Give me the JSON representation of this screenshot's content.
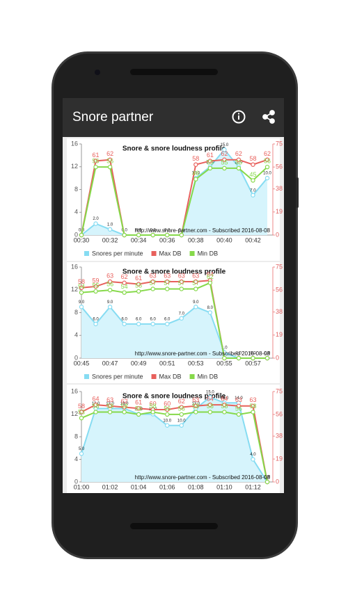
{
  "app_bar": {
    "title": "Snore partner"
  },
  "chart_data": [
    {
      "type": "line",
      "title": "Snore & snore loudness profile",
      "footer": "http://www.snore-partner.com - Subscribed 2016-08-08",
      "categories": [
        "00:30",
        null,
        "00:32",
        null,
        "00:34",
        null,
        "00:36",
        null,
        "00:38",
        null,
        "00:40",
        null,
        "00:42",
        null
      ],
      "ylim": [
        0,
        16
      ],
      "yticks": [
        0,
        4,
        8,
        12,
        16
      ],
      "y2lim": [
        0,
        75
      ],
      "y2ticks": [
        0,
        19,
        38,
        56,
        75
      ],
      "legend": "bottom",
      "series": [
        {
          "name": "Snores per minute",
          "color": "#86dcf2",
          "area": true,
          "values": [
            0,
            2,
            1,
            0,
            0,
            0,
            0,
            0,
            10,
            12,
            15,
            12,
            7,
            10
          ],
          "value_labels": [
            "0.0",
            "2.0",
            "1.0",
            "0.0",
            "0.0",
            "0.0",
            "0.0",
            "0.0",
            "10.0",
            "12.0",
            "15.0",
            "12.0",
            "7.0",
            "10.0"
          ]
        },
        {
          "name": "Max DB",
          "color": "#e8605c",
          "axis": "y2",
          "values": [
            0,
            61,
            62,
            0,
            0,
            0,
            0,
            0,
            58,
            61,
            62,
            62,
            58,
            62
          ]
        },
        {
          "name": "Min DB",
          "color": "#86d94a",
          "axis": "y2",
          "values": [
            0,
            56,
            56,
            0,
            0,
            0,
            0,
            0,
            46,
            55,
            55,
            55,
            45,
            56
          ]
        }
      ]
    },
    {
      "type": "line",
      "title": "Snore & snore loudness profile",
      "footer": "http://www.snore-partner.com - Subscribed 2016-08-08",
      "categories": [
        "00:45",
        null,
        "00:47",
        null,
        "00:49",
        null,
        "00:51",
        null,
        "00:53",
        null,
        "00:55",
        null,
        "00:57",
        null
      ],
      "ylim": [
        0,
        16
      ],
      "yticks": [
        0,
        4,
        8,
        12,
        16
      ],
      "y2lim": [
        0,
        75
      ],
      "y2ticks": [
        0,
        19,
        38,
        56,
        75
      ],
      "legend": "bottom",
      "series": [
        {
          "name": "Snores per minute",
          "color": "#86dcf2",
          "area": true,
          "values": [
            9,
            6,
            9,
            6,
            6,
            6,
            6,
            7,
            9,
            8,
            1,
            0,
            0,
            0
          ],
          "value_labels": [
            "9.0",
            "6.0",
            "9.0",
            "6.0",
            "6.0",
            "6.0",
            "6.0",
            "7.0",
            "9.0",
            "8.0",
            "1.0",
            "0.0",
            "0.0",
            "0.0"
          ]
        },
        {
          "name": "Max DB",
          "color": "#e8605c",
          "axis": "y2",
          "values": [
            58,
            59,
            63,
            62,
            61,
            63,
            63,
            63,
            63,
            64,
            0,
            0,
            0,
            0
          ]
        },
        {
          "name": "Min DB",
          "color": "#86d94a",
          "axis": "y2",
          "values": [
            54,
            55,
            56,
            54,
            55,
            57,
            57,
            57,
            57,
            62,
            0,
            0,
            0,
            0
          ]
        }
      ]
    },
    {
      "type": "line",
      "title": "Snore & snore loudness profile",
      "footer": "http://www.snore-partner.com - Subscribed 2016-08-08",
      "categories": [
        "01:00",
        null,
        "01:02",
        null,
        "01:04",
        null,
        "01:06",
        null,
        "01:08",
        null,
        "01:10",
        null,
        "01:12",
        null
      ],
      "ylim": [
        0,
        16
      ],
      "yticks": [
        0,
        4,
        8,
        12,
        16
      ],
      "y2lim": [
        0,
        75
      ],
      "y2ticks": [
        0,
        19,
        38,
        56,
        75
      ],
      "legend": "bottom",
      "series": [
        {
          "name": "Snores per minute",
          "color": "#86dcf2",
          "area": true,
          "values": [
            5,
            13,
            13,
            13,
            12,
            12,
            10,
            10,
            13,
            15,
            14,
            14,
            4,
            0
          ],
          "value_labels": [
            "5.0",
            "13.0",
            "13.0",
            "13.0",
            "12.0",
            "12.0",
            "10.0",
            "10.0",
            "13.0",
            "15.0",
            "14.0",
            "14.0",
            "4.0",
            "0.0"
          ]
        },
        {
          "name": "Max DB",
          "color": "#e8605c",
          "axis": "y2",
          "values": [
            58,
            64,
            63,
            62,
            61,
            60,
            60,
            62,
            63,
            64,
            64,
            63,
            63,
            0
          ]
        },
        {
          "name": "Min DB",
          "color": "#86d94a",
          "axis": "y2",
          "values": [
            53,
            58,
            58,
            58,
            56,
            58,
            56,
            56,
            58,
            58,
            58,
            56,
            58,
            0
          ]
        }
      ]
    }
  ]
}
